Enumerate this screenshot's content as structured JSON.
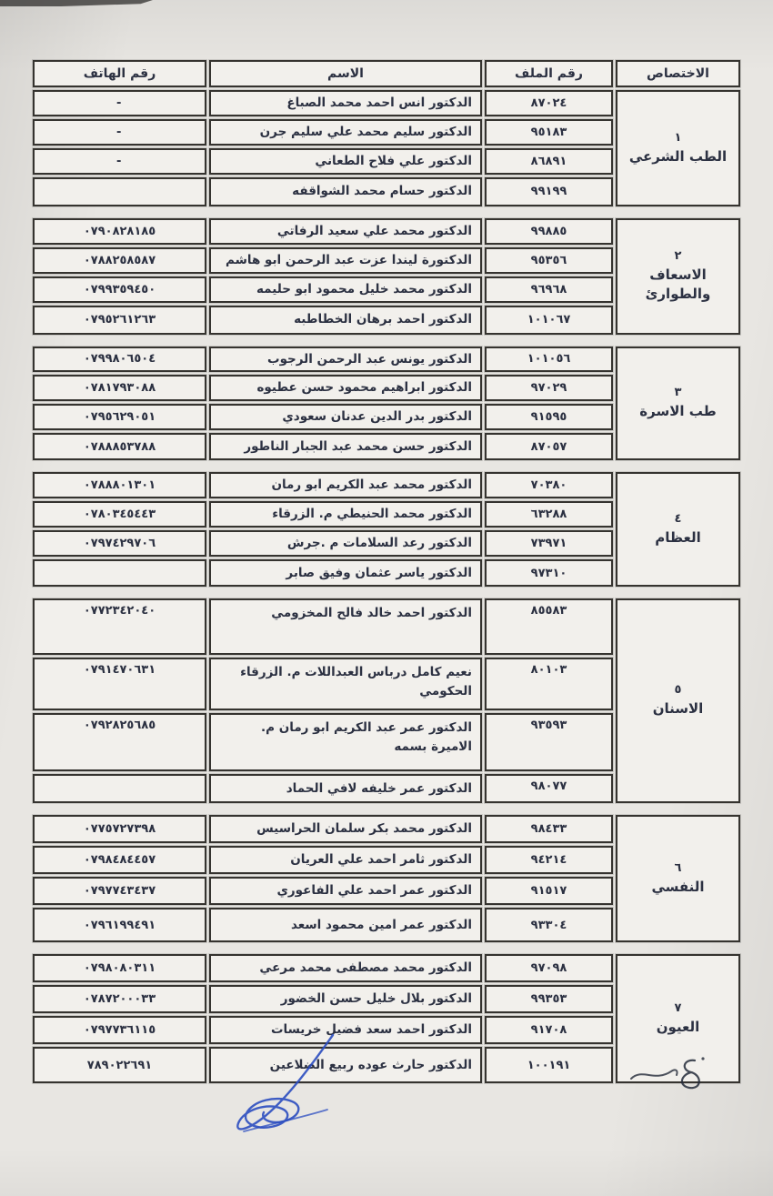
{
  "page": {
    "bg": "#e8e6e2",
    "ink": "#2c3142",
    "border": "#35332f",
    "pen_blue": "#2b4cc0"
  },
  "table": {
    "headers": {
      "specialization": "الاختصاص",
      "file_number": "رقم الملف",
      "name": "الاسم",
      "phone": "رقم الهاتف"
    },
    "groups": [
      {
        "number": "١",
        "specialization": "الطب الشرعي",
        "rows": [
          {
            "file": "٨٧٠٢٤",
            "name": "الدكتور انس احمد محمد الصباغ",
            "phone": "-"
          },
          {
            "file": "٩٥١٨٣",
            "name": "الدكتور سليم محمد علي سليم جرن",
            "phone": "-"
          },
          {
            "file": "٨٦٨٩١",
            "name": "الدكتور علي فلاح الطعاني",
            "phone": "-"
          },
          {
            "file": "٩٩١٩٩",
            "name": "الدكتور حسام محمد الشواقفه",
            "phone": ""
          }
        ]
      },
      {
        "number": "٢",
        "specialization": "الاسعاف والطوارئ",
        "rows": [
          {
            "file": "٩٩٨٨٥",
            "name": "الدكتور محمد علي سعيد الرفاتي",
            "phone": "٠٧٩٠٨٢٨١٨٥"
          },
          {
            "file": "٩٥٣٥٦",
            "name": "الدكتورة ليندا عزت عبد الرحمن ابو هاشم",
            "phone": "٠٧٨٨٢٥٨٥٨٧"
          },
          {
            "file": "٩٦٩٦٨",
            "name": "الدكتور محمد خليل محمود ابو حليمه",
            "phone": "٠٧٩٩٣٥٩٤٥٠"
          },
          {
            "file": "١٠١٠٦٧",
            "name": "الدكتور احمد برهان الخطاطبه",
            "phone": "٠٧٩٥٢٦١٢٦٣"
          }
        ]
      },
      {
        "number": "٣",
        "specialization": "طب الاسرة",
        "rows": [
          {
            "file": "١٠١٠٥٦",
            "name": "الدكتور يونس عبد الرحمن الرجوب",
            "phone": "٠٧٩٩٨٠٦٥٠٤"
          },
          {
            "file": "٩٧٠٢٩",
            "name": "الدكتور ابراهيم محمود حسن عطيوه",
            "phone": "٠٧٨١٧٩٣٠٨٨"
          },
          {
            "file": "٩١٥٩٥",
            "name": "الدكتور بدر الدين عدنان سعودي",
            "phone": "٠٧٩٥٦٢٩٠٥١"
          },
          {
            "file": "٨٧٠٥٧",
            "name": "الدكتور حسن محمد عبد الجبار الناطور",
            "phone": "٠٧٨٨٨٥٣٧٨٨"
          }
        ]
      },
      {
        "number": "٤",
        "specialization": "العظام",
        "rows": [
          {
            "file": "٧٠٣٨٠",
            "name": "الدكتور محمد عبد الكريم ابو رمان",
            "phone": "٠٧٨٨٨٠١٣٠١"
          },
          {
            "file": "٦٣٢٨٨",
            "name": "الدكتور محمد الحنيطي م. الزرقاء",
            "phone": "٠٧٨٠٣٤٥٤٤٣"
          },
          {
            "file": "٧٣٩٧١",
            "name": "الدكتور رعد السلامات م .جرش",
            "phone": "٠٧٩٧٤٢٩٧٠٦"
          },
          {
            "file": "٩٧٣١٠",
            "name": "الدكتور ياسر عثمان وفيق صابر",
            "phone": ""
          }
        ]
      },
      {
        "number": "٥",
        "specialization": "الاسنان",
        "rows": [
          {
            "file": "٨٥٥٨٣",
            "name": "الدكتور احمد خالد فالح المخزومي",
            "phone": "٠٧٧٢٣٤٢٠٤٠"
          },
          {
            "file": "٨٠١٠٣",
            "name": "نعيم كامل درباس العبداللات م. الزرقاء الحكومي",
            "phone": "٠٧٩١٤٧٠٦٣١"
          },
          {
            "file": "٩٣٥٩٣",
            "name": "الدكتور عمر عبد الكريم ابو رمان م. الاميرة بسمه",
            "phone": "٠٧٩٢٨٢٥٦٨٥"
          },
          {
            "file": "٩٨٠٧٧",
            "name": "الدكتور عمر خليفه لافي الحماد",
            "phone": ""
          }
        ]
      },
      {
        "number": "٦",
        "specialization": "النفسي",
        "rows": [
          {
            "file": "٩٨٤٣٣",
            "name": "الدكتور محمد بكر سلمان الحراسيس",
            "phone": "٠٧٧٥٧٢٧٣٩٨"
          },
          {
            "file": "٩٤٢١٤",
            "name": "الدكتور ثامر احمد علي العريان",
            "phone": "٠٧٩٨٤٨٤٤٥٧"
          },
          {
            "file": "٩١٥١٧",
            "name": "الدكتور عمر احمد علي الفاعوري",
            "phone": "٠٧٩٧٧٤٣٤٣٧"
          },
          {
            "file": "٩٣٣٠٤",
            "name": "الدكتور عمر امين محمود اسعد",
            "phone": "٠٧٩٦١٩٩٤٩١"
          }
        ]
      },
      {
        "number": "٧",
        "specialization": "العيون",
        "rows": [
          {
            "file": "٩٧٠٩٨",
            "name": "الدكتور محمد مصطفى محمد مرعي",
            "phone": "٠٧٩٨٠٨٠٣١١"
          },
          {
            "file": "٩٩٣٥٣",
            "name": "الدكتور بلال خليل حسن الخضور",
            "phone": "٠٧٨٧٢٠٠٠٣٣"
          },
          {
            "file": "٩١٧٠٨",
            "name": "الدكتور احمد سعد فضيل خريسات",
            "phone": "٠٧٩٧٧٣٦١١٥"
          },
          {
            "file": "١٠٠١٩١",
            "name": "الدكتور حارث عوده ربيع الضلاعين",
            "phone": "٧٨٩٠٢٢٦٩١"
          }
        ]
      }
    ]
  },
  "marks": {
    "signature": "blue-ink-signature-scribble",
    "corner_note": "handwritten-pen-mark-bottom-right",
    "scan_artifact": "dark-strip-top-left"
  }
}
